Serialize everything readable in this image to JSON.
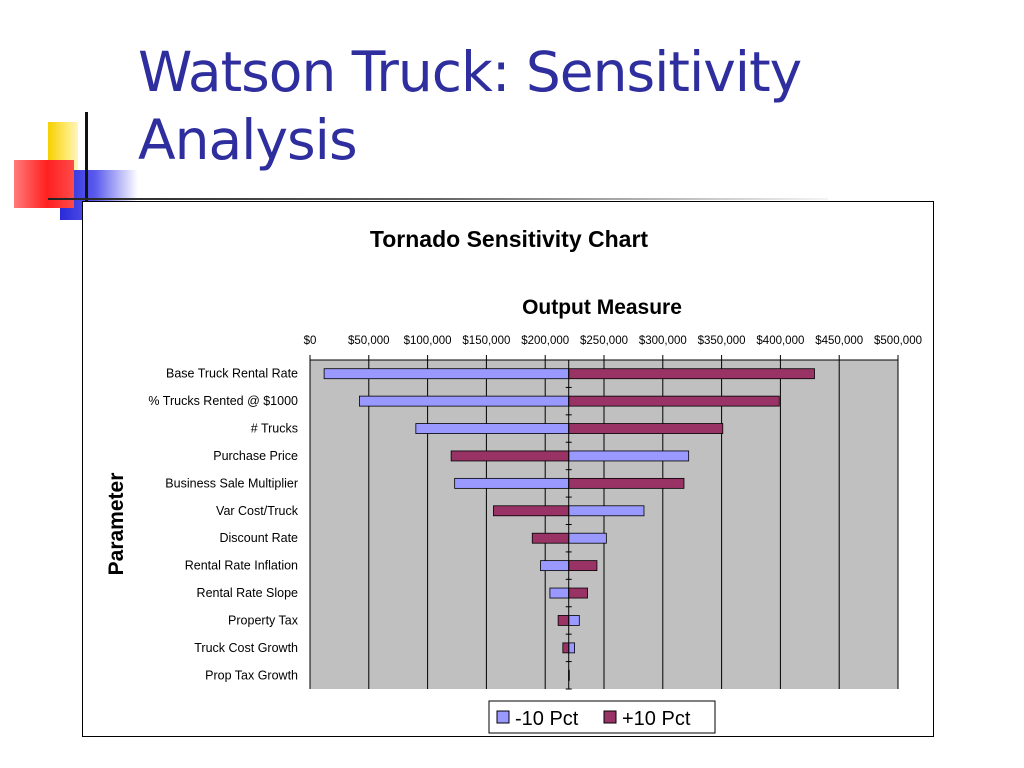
{
  "slide": {
    "title": "Watson Truck: Sensitivity Analysis"
  },
  "colors": {
    "title": "#2e2e9e",
    "minus_series": "#9999ff",
    "plus_series": "#993366",
    "plot_background": "#c0c0c0"
  },
  "chart_data": {
    "type": "bar",
    "orientation": "horizontal",
    "title": "Tornado Sensitivity Chart",
    "xlabel": "Output Measure",
    "ylabel": "Parameter",
    "x_axis_position": "top",
    "xlim": [
      0,
      500000
    ],
    "base_value": 220000,
    "xticks": [
      0,
      50000,
      100000,
      150000,
      200000,
      250000,
      300000,
      350000,
      400000,
      450000,
      500000
    ],
    "xtick_labels": [
      "$0",
      "$50,000",
      "$100,000",
      "$150,000",
      "$200,000",
      "$250,000",
      "$300,000",
      "$350,000",
      "$400,000",
      "$450,000",
      "$500,000"
    ],
    "grid": true,
    "legend": "bottom-center",
    "categories": [
      "Base Truck Rental Rate",
      "% Trucks Rented @ $1000",
      "# Trucks",
      "Purchase Price",
      "Business Sale Multiplier",
      "Var Cost/Truck",
      "Discount Rate",
      "Rental Rate Inflation",
      "Rental Rate Slope",
      "Property Tax",
      "Truck Cost Growth",
      "Prop Tax Growth"
    ],
    "series": [
      {
        "name": "-10 Pct",
        "color": "#9999ff",
        "values": [
          12000,
          42000,
          90000,
          322000,
          123000,
          284000,
          252000,
          196000,
          204000,
          229000,
          225000,
          220000
        ]
      },
      {
        "name": "+10 Pct",
        "color": "#993366",
        "values": [
          429000,
          399000,
          351000,
          120000,
          318000,
          156000,
          189000,
          244000,
          236000,
          211000,
          215000,
          220000
        ]
      }
    ]
  }
}
